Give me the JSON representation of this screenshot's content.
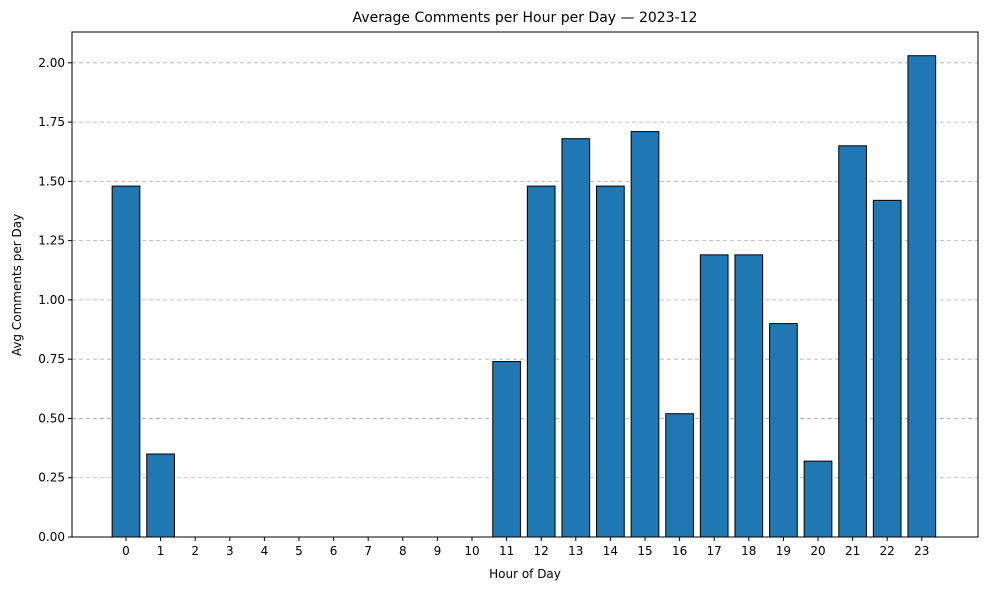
{
  "chart_data": {
    "type": "bar",
    "title": "Average Comments per Hour per Day — 2023-12",
    "xlabel": "Hour of Day",
    "ylabel": "Avg Comments per Day",
    "categories": [
      "0",
      "1",
      "2",
      "3",
      "4",
      "5",
      "6",
      "7",
      "8",
      "9",
      "10",
      "11",
      "12",
      "13",
      "14",
      "15",
      "16",
      "17",
      "18",
      "19",
      "20",
      "21",
      "22",
      "23"
    ],
    "values": [
      1.48,
      0.35,
      0,
      0,
      0,
      0,
      0,
      0,
      0,
      0,
      0,
      0.74,
      1.48,
      1.68,
      1.48,
      1.71,
      0.52,
      1.19,
      1.19,
      0.9,
      0.32,
      1.65,
      1.42,
      2.03
    ],
    "ylim": [
      0,
      2.13
    ],
    "yticks": [
      "0.00",
      "0.25",
      "0.50",
      "0.75",
      "1.00",
      "1.25",
      "1.50",
      "1.75",
      "2.00"
    ],
    "grid": "y-dashed",
    "bar_color": "#1f77b4",
    "edge_color": "#000000"
  }
}
